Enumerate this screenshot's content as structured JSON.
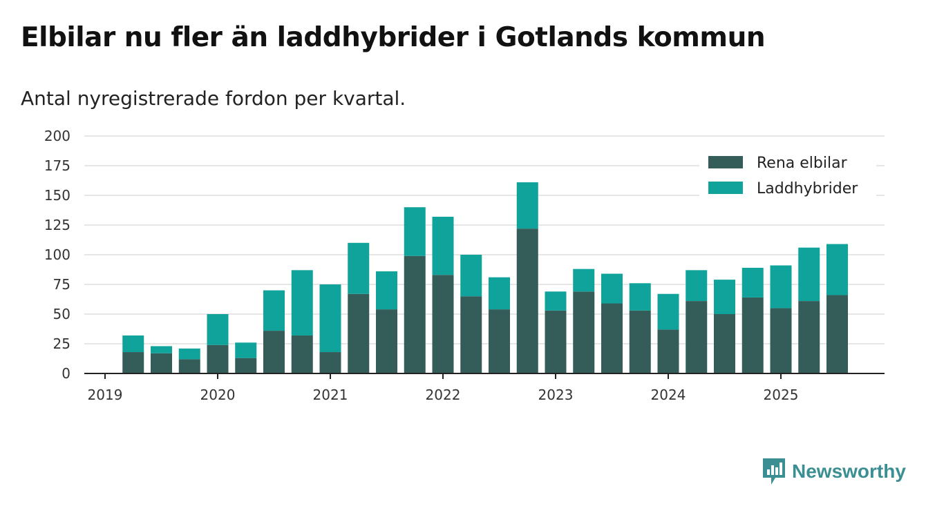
{
  "title": "Elbilar nu fler än laddhybrider i Gotlands kommun",
  "subtitle": "Antal nyregistrerade fordon per kvartal.",
  "brand": {
    "name": "Newsworthy",
    "icon": "newsworthy-logo-icon",
    "color": "#3b8f93"
  },
  "colors": {
    "electric": "#345d5a",
    "hybrid": "#10a39b",
    "grid": "#dddddd",
    "axis": "#222222"
  },
  "chart_data": {
    "type": "bar",
    "stacked": true,
    "title": "Elbilar nu fler än laddhybrider i Gotlands kommun",
    "subtitle": "Antal nyregistrerade fordon per kvartal.",
    "xlabel": "",
    "ylabel": "",
    "ylim": [
      0,
      200
    ],
    "yticks": [
      "0",
      "25",
      "50",
      "75",
      "100",
      "125",
      "150",
      "175",
      "200"
    ],
    "xticks": [
      "2019",
      "2020",
      "2021",
      "2022",
      "2023",
      "2024",
      "2025"
    ],
    "categories": [
      "2019 Q2",
      "2019 Q3",
      "2019 Q4",
      "2020 Q1",
      "2020 Q2",
      "2020 Q3",
      "2020 Q4",
      "2021 Q1",
      "2021 Q2",
      "2021 Q3",
      "2021 Q4",
      "2022 Q1",
      "2022 Q2",
      "2022 Q3",
      "2022 Q4",
      "2023 Q1",
      "2023 Q2",
      "2023 Q3",
      "2023 Q4",
      "2024 Q1",
      "2024 Q2",
      "2024 Q3",
      "2024 Q4",
      "2025 Q1",
      "2025 Q2",
      "2025 Q3"
    ],
    "legend_position": "top-right",
    "grid": true,
    "series": [
      {
        "name": "Rena elbilar",
        "color": "#345d5a",
        "values": [
          18,
          17,
          12,
          24,
          13,
          36,
          32,
          18,
          67,
          54,
          99,
          83,
          65,
          54,
          122,
          53,
          69,
          59,
          53,
          37,
          61,
          50,
          64,
          55,
          61,
          66
        ]
      },
      {
        "name": "Laddhybrider",
        "color": "#10a39b",
        "values": [
          14,
          6,
          9,
          26,
          13,
          34,
          55,
          57,
          43,
          32,
          41,
          49,
          35,
          27,
          39,
          16,
          19,
          25,
          23,
          30,
          26,
          29,
          25,
          36,
          45,
          43
        ]
      }
    ]
  }
}
